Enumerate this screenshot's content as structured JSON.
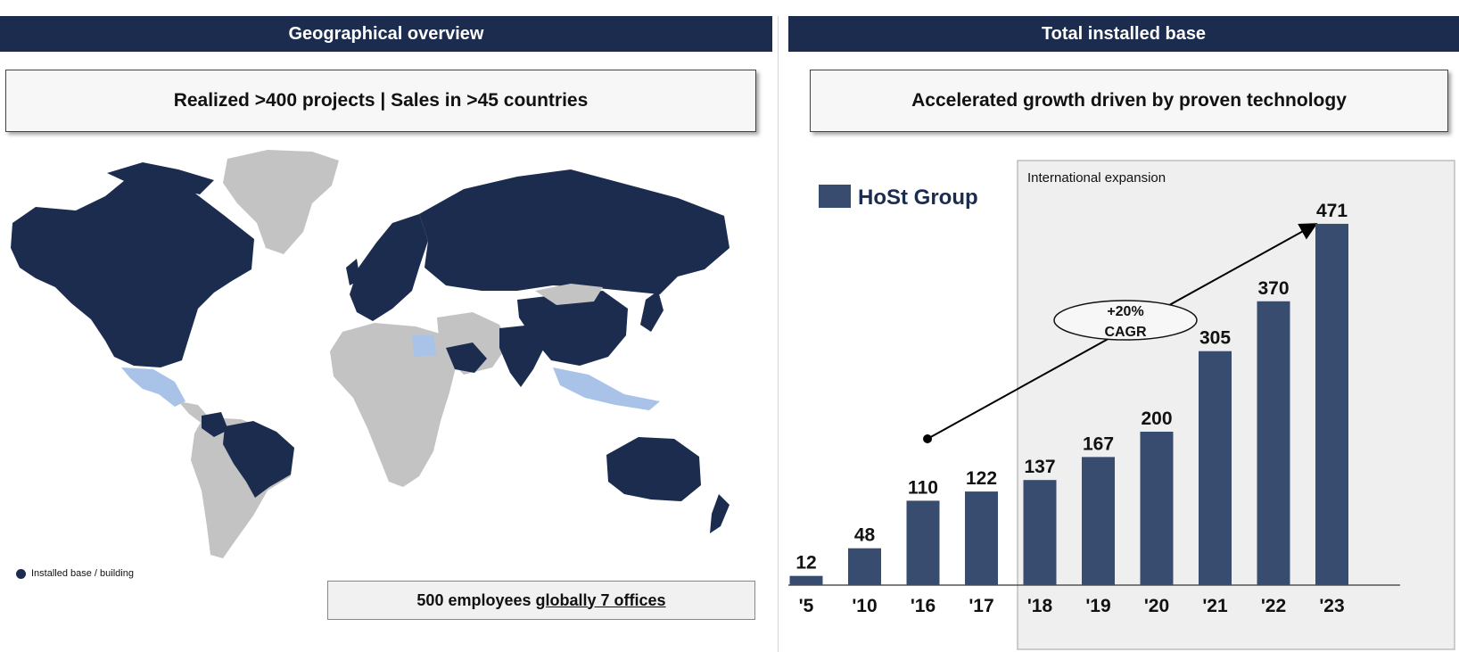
{
  "left": {
    "header": "Geographical overview",
    "subtitle": "Realized >400 projects | Sales in >45 countries",
    "legend_label": "Installed base / building",
    "employees": {
      "plain": "500 employees",
      "underlined": "globally 7 offices"
    },
    "colors": {
      "installed": "#1b2c4e",
      "other": "#c3c3c3",
      "highlight": "#a9c3e8"
    }
  },
  "right": {
    "header": "Total installed base",
    "subtitle": "Accelerated growth driven by proven technology"
  },
  "chart_data": {
    "type": "bar",
    "categories": [
      "'5",
      "'10",
      "'16",
      "'17",
      "'18",
      "'19",
      "'20",
      "'21",
      "'22",
      "'23"
    ],
    "series": [
      {
        "name": "HoSt Group",
        "values": [
          12,
          48,
          110,
          122,
          137,
          167,
          200,
          305,
          370,
          471
        ]
      }
    ],
    "ylim": [
      0,
      500
    ],
    "grid": false,
    "legend": "top-left",
    "bar_color": "#374c6e",
    "annotations": {
      "region_label": "International expansion",
      "growth_label_1": "+20%",
      "growth_label_2": "CAGR"
    }
  }
}
